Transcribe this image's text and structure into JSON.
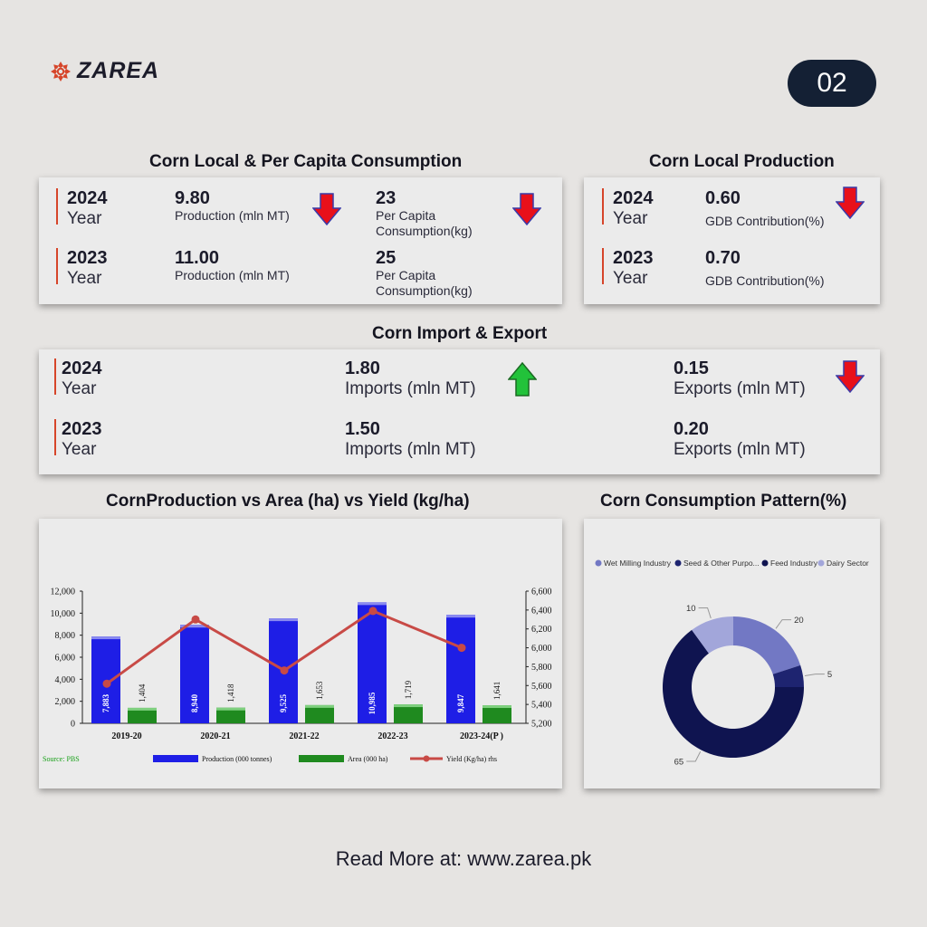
{
  "brand": {
    "name": "ZAREA"
  },
  "page_number": "02",
  "local_consumption": {
    "title": "Corn Local & Per Capita Consumption",
    "rows": [
      {
        "year": "2024",
        "year_label": "Year",
        "production_value": "9.80",
        "production_label": "Production (mln MT)",
        "production_trend": "down",
        "per_capita_value": "23",
        "per_capita_label_1": "Per Capita",
        "per_capita_label_2": "Consumption(kg)",
        "per_capita_trend": "down"
      },
      {
        "year": "2023",
        "year_label": "Year",
        "production_value": "11.00",
        "production_label": "Production (mln MT)",
        "per_capita_value": "25",
        "per_capita_label_1": "Per Capita",
        "per_capita_label_2": "Consumption(kg)"
      }
    ]
  },
  "local_production": {
    "title": "Corn Local Production",
    "rows": [
      {
        "year": "2024",
        "year_label": "Year",
        "value": "0.60",
        "label": "GDB Contribution(%)",
        "trend": "down"
      },
      {
        "year": "2023",
        "year_label": "Year",
        "value": "0.70",
        "label": "GDB Contribution(%)"
      }
    ]
  },
  "import_export": {
    "title": "Corn Import & Export",
    "rows": [
      {
        "year": "2024",
        "year_label": "Year",
        "imports_value": "1.80",
        "imports_label": "Imports (mln MT)",
        "imports_trend": "up",
        "exports_value": "0.15",
        "exports_label": "Exports (mln MT)",
        "exports_trend": "down"
      },
      {
        "year": "2023",
        "year_label": "Year",
        "imports_value": "1.50",
        "imports_label": "Imports (mln MT)",
        "exports_value": "0.20",
        "exports_label": "Exports (mln MT)"
      }
    ]
  },
  "footer": "Read More at: www.zarea.pk",
  "colors": {
    "down_arrow": "#e8101a",
    "up_arrow": "#22c23a",
    "production_bar": "#1e1ee6",
    "area_bar": "#1f8a1f",
    "yield_line": "#c84a46",
    "accent": "#d6452a"
  },
  "chart_data": [
    {
      "type": "bar",
      "title": "CornProduction vs Area (ha) vs Yield (kg/ha)",
      "categories": [
        "2019-20",
        "2020-21",
        "2021-22",
        "2022-23",
        "2023-24(P )"
      ],
      "series": [
        {
          "name": "Production (000 tonnes)",
          "kind": "bar",
          "axis": "left",
          "values": [
            7883,
            8940,
            9525,
            10985,
            9847
          ],
          "labels": [
            "7,883",
            "8,940",
            "9,525",
            "10,985",
            "9,847"
          ]
        },
        {
          "name": "Area (000 ha)",
          "kind": "bar",
          "axis": "left",
          "values": [
            1404,
            1418,
            1653,
            1719,
            1641
          ],
          "labels": [
            "1,404",
            "1,418",
            "1,653",
            "1,719",
            "1,641"
          ]
        },
        {
          "name": "Yield (Kg/ha) rhs",
          "kind": "line",
          "axis": "right",
          "values": [
            5620,
            6300,
            5760,
            6390,
            6000
          ]
        }
      ],
      "ylim": [
        0,
        12000
      ],
      "yticks": [
        "0",
        "2,000",
        "4,000",
        "6,000",
        "8,000",
        "10,000",
        "12,000"
      ],
      "y2lim": [
        5200,
        6600
      ],
      "y2ticks": [
        "5,200",
        "5,400",
        "5,600",
        "5,800",
        "6,000",
        "6,200",
        "6,400",
        "6,600"
      ],
      "source": "Source: PBS",
      "legend_position": "bottom"
    },
    {
      "type": "pie",
      "title": "Corn Consumption Pattern(%)",
      "donut": true,
      "legend_position": "top",
      "slices": [
        {
          "name": "Wet Milling Industry",
          "legend": "Wet Milling Industry",
          "value": 20,
          "label": "20",
          "color": "#7278c4"
        },
        {
          "name": "Seed & Other Purposes",
          "legend": "Seed & Other Purpo...",
          "value": 5,
          "label": "5",
          "color": "#1e2470"
        },
        {
          "name": "Feed Industry",
          "legend": "Feed Industry",
          "value": 65,
          "label": "65",
          "color": "#0f1450"
        },
        {
          "name": "Dairy Sector",
          "legend": "Dairy Sector",
          "value": 10,
          "label": "10",
          "color": "#a2a6da"
        }
      ]
    }
  ]
}
